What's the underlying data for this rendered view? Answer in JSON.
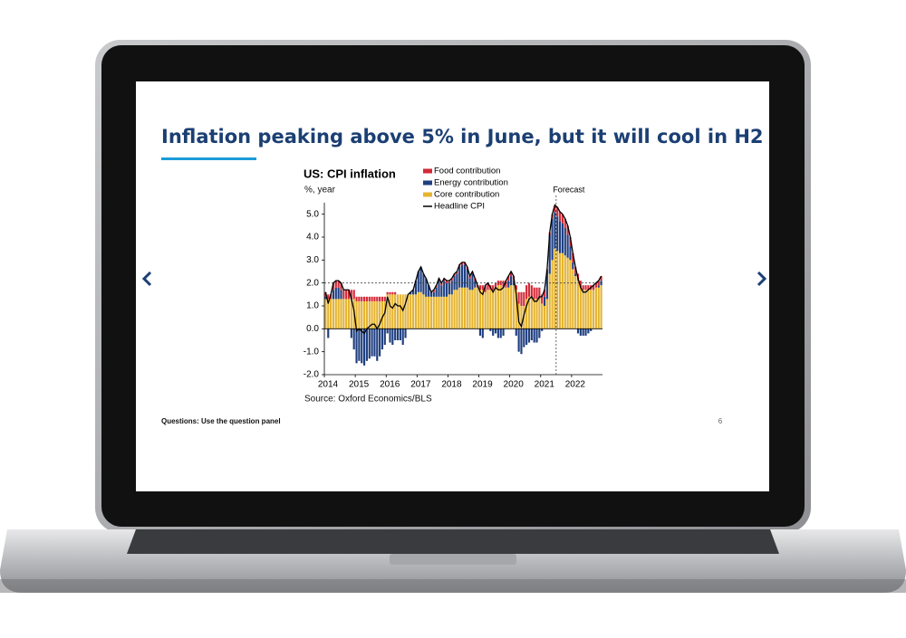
{
  "slide": {
    "title": "Inflation peaking above 5% in June, but it will cool in H2",
    "footer": "Questions: Use the question panel",
    "page_number": 6
  },
  "chart_data": {
    "type": "bar",
    "stacked": true,
    "title": "US: CPI inflation",
    "y_label": "%, year",
    "source": "Source: Oxford Economics/BLS",
    "legend": "top",
    "annotation": {
      "text": "Forecast",
      "category_index": 89
    },
    "hline": 2,
    "ylim": [
      -2,
      5.5
    ],
    "yticks": [
      {
        "value": 5,
        "label": "5.0"
      },
      {
        "value": 4,
        "label": "4.0"
      },
      {
        "value": 3,
        "label": "3.0"
      },
      {
        "value": 2,
        "label": "2.0"
      },
      {
        "value": 1,
        "label": "1.0"
      },
      {
        "value": 0,
        "label": "0.0"
      },
      {
        "value": -1,
        "label": "-1.0"
      },
      {
        "value": -2,
        "label": "-2.0"
      }
    ],
    "categories": [
      "2014",
      null,
      null,
      null,
      null,
      null,
      null,
      null,
      null,
      null,
      null,
      null,
      "2015",
      null,
      null,
      null,
      null,
      null,
      null,
      null,
      null,
      null,
      null,
      null,
      "2016",
      null,
      null,
      null,
      null,
      null,
      null,
      null,
      null,
      null,
      null,
      null,
      "2017",
      null,
      null,
      null,
      null,
      null,
      null,
      null,
      null,
      null,
      null,
      null,
      "2018",
      null,
      null,
      null,
      null,
      null,
      null,
      null,
      null,
      null,
      null,
      null,
      "2019",
      null,
      null,
      null,
      null,
      null,
      null,
      null,
      null,
      null,
      null,
      null,
      "2020",
      null,
      null,
      null,
      null,
      null,
      null,
      null,
      null,
      null,
      null,
      null,
      "2021",
      null,
      null,
      null,
      null,
      null,
      null,
      null,
      null,
      null,
      null,
      null,
      "2022",
      null,
      null,
      null,
      null,
      null,
      null,
      null,
      null,
      null,
      null,
      null
    ],
    "series": [
      {
        "name": "Food contribution",
        "color": "#d42a37",
        "type": "bar",
        "values": [
          0.2,
          0.2,
          0.2,
          0.3,
          0.3,
          0.3,
          0.3,
          0.4,
          0.4,
          0.4,
          0.4,
          0.4,
          0.2,
          0.2,
          0.2,
          0.2,
          0.2,
          0.2,
          0.2,
          0.2,
          0.2,
          0.2,
          0.2,
          0.2,
          0.1,
          0.1,
          0.1,
          0.1,
          0.0,
          0.0,
          0.0,
          0.0,
          0.0,
          0.0,
          0.0,
          0.0,
          0.0,
          0.0,
          0.0,
          0.0,
          0.0,
          0.0,
          0.1,
          0.1,
          0.1,
          0.1,
          0.1,
          0.1,
          0.1,
          0.1,
          0.1,
          0.1,
          0.1,
          0.1,
          0.1,
          0.1,
          0.1,
          0.1,
          0.1,
          0.1,
          0.2,
          0.2,
          0.3,
          0.3,
          0.2,
          0.2,
          0.2,
          0.2,
          0.2,
          0.3,
          0.3,
          0.2,
          0.2,
          0.2,
          0.2,
          0.5,
          0.6,
          0.6,
          0.6,
          0.6,
          0.5,
          0.5,
          0.5,
          0.5,
          0.4,
          0.3,
          0.1,
          0.1,
          0.2,
          0.3,
          0.4,
          0.4,
          0.4,
          0.4,
          0.4,
          0.4,
          0.4,
          0.3,
          0.3,
          0.3,
          0.2,
          0.2,
          0.2,
          0.2,
          0.2,
          0.2,
          0.2,
          0.2
        ]
      },
      {
        "name": "Energy contribution",
        "color": "#1f3f80",
        "type": "bar",
        "values": [
          0.1,
          -0.4,
          0.0,
          0.4,
          0.5,
          0.5,
          0.4,
          0.0,
          0.0,
          0.0,
          -0.4,
          -0.9,
          -1.5,
          -1.4,
          -1.5,
          -1.6,
          -1.4,
          -1.3,
          -1.2,
          -1.2,
          -1.4,
          -1.2,
          -0.9,
          -0.7,
          -0.2,
          -0.6,
          -0.7,
          -0.5,
          -0.5,
          -0.5,
          -0.7,
          -0.4,
          0.0,
          0.1,
          0.2,
          0.6,
          0.9,
          1.1,
          0.9,
          0.8,
          0.5,
          0.2,
          0.2,
          0.4,
          0.7,
          0.5,
          0.7,
          0.6,
          0.5,
          0.6,
          0.6,
          0.7,
          0.9,
          1.0,
          1.0,
          0.8,
          0.5,
          0.7,
          0.3,
          0.0,
          -0.3,
          -0.4,
          0.0,
          0.0,
          -0.1,
          -0.3,
          -0.2,
          -0.4,
          -0.4,
          -0.3,
          0.0,
          0.3,
          0.4,
          0.2,
          -0.3,
          -1.0,
          -1.1,
          -0.8,
          -0.7,
          -0.6,
          -0.5,
          -0.6,
          -0.6,
          -0.4,
          -0.1,
          0.4,
          1.2,
          1.7,
          1.8,
          1.6,
          1.5,
          1.4,
          1.3,
          1.2,
          1.0,
          0.6,
          0.3,
          0.1,
          -0.2,
          -0.3,
          -0.3,
          -0.3,
          -0.2,
          -0.1,
          0.0,
          0.0,
          0.1,
          0.2
        ]
      },
      {
        "name": "Core contribution",
        "color": "#e5b431",
        "type": "bar",
        "values": [
          1.3,
          1.3,
          1.3,
          1.3,
          1.3,
          1.3,
          1.3,
          1.3,
          1.3,
          1.3,
          1.3,
          1.3,
          1.2,
          1.2,
          1.2,
          1.2,
          1.2,
          1.2,
          1.2,
          1.2,
          1.2,
          1.2,
          1.2,
          1.2,
          1.5,
          1.5,
          1.5,
          1.5,
          1.5,
          1.5,
          1.5,
          1.5,
          1.5,
          1.5,
          1.5,
          1.5,
          1.6,
          1.6,
          1.5,
          1.4,
          1.4,
          1.4,
          1.4,
          1.4,
          1.4,
          1.4,
          1.4,
          1.4,
          1.5,
          1.5,
          1.7,
          1.7,
          1.8,
          1.8,
          1.8,
          1.8,
          1.7,
          1.7,
          1.8,
          1.8,
          1.7,
          1.7,
          1.6,
          1.7,
          1.7,
          1.7,
          1.8,
          1.9,
          1.9,
          1.8,
          1.8,
          1.8,
          1.9,
          1.9,
          1.7,
          1.1,
          1.0,
          1.0,
          1.3,
          1.4,
          1.4,
          1.3,
          1.3,
          1.3,
          1.1,
          1.0,
          1.3,
          2.4,
          3.0,
          3.5,
          3.4,
          3.3,
          3.3,
          3.2,
          3.1,
          3.0,
          2.6,
          2.3,
          2.1,
          1.8,
          1.7,
          1.7,
          1.7,
          1.7,
          1.7,
          1.8,
          1.8,
          1.9
        ]
      },
      {
        "name": "Headline CPI",
        "color": "#000000",
        "type": "line",
        "values": [
          1.6,
          1.1,
          1.5,
          2.0,
          2.1,
          2.1,
          2.0,
          1.7,
          1.7,
          1.7,
          1.3,
          0.8,
          -0.1,
          0.0,
          -0.1,
          -0.2,
          0.0,
          0.1,
          0.2,
          0.2,
          0.0,
          0.2,
          0.5,
          0.7,
          1.4,
          1.0,
          0.9,
          1.1,
          1.0,
          1.0,
          0.8,
          1.1,
          1.5,
          1.6,
          1.7,
          2.1,
          2.5,
          2.7,
          2.4,
          2.2,
          1.9,
          1.6,
          1.7,
          1.9,
          2.2,
          2.0,
          2.2,
          2.1,
          2.1,
          2.2,
          2.4,
          2.5,
          2.8,
          2.9,
          2.9,
          2.7,
          2.3,
          2.5,
          2.2,
          1.9,
          1.6,
          1.5,
          1.9,
          2.0,
          1.8,
          1.6,
          1.8,
          1.7,
          1.7,
          1.8,
          2.1,
          2.3,
          2.5,
          2.3,
          1.5,
          0.3,
          0.1,
          0.6,
          1.0,
          1.3,
          1.4,
          1.2,
          1.2,
          1.4,
          1.4,
          1.7,
          2.6,
          4.2,
          5.0,
          5.4,
          5.3,
          5.1,
          5.0,
          4.8,
          4.5,
          4.0,
          3.3,
          2.7,
          2.2,
          1.8,
          1.6,
          1.6,
          1.7,
          1.8,
          1.9,
          2.0,
          2.1,
          2.3
        ]
      }
    ]
  }
}
